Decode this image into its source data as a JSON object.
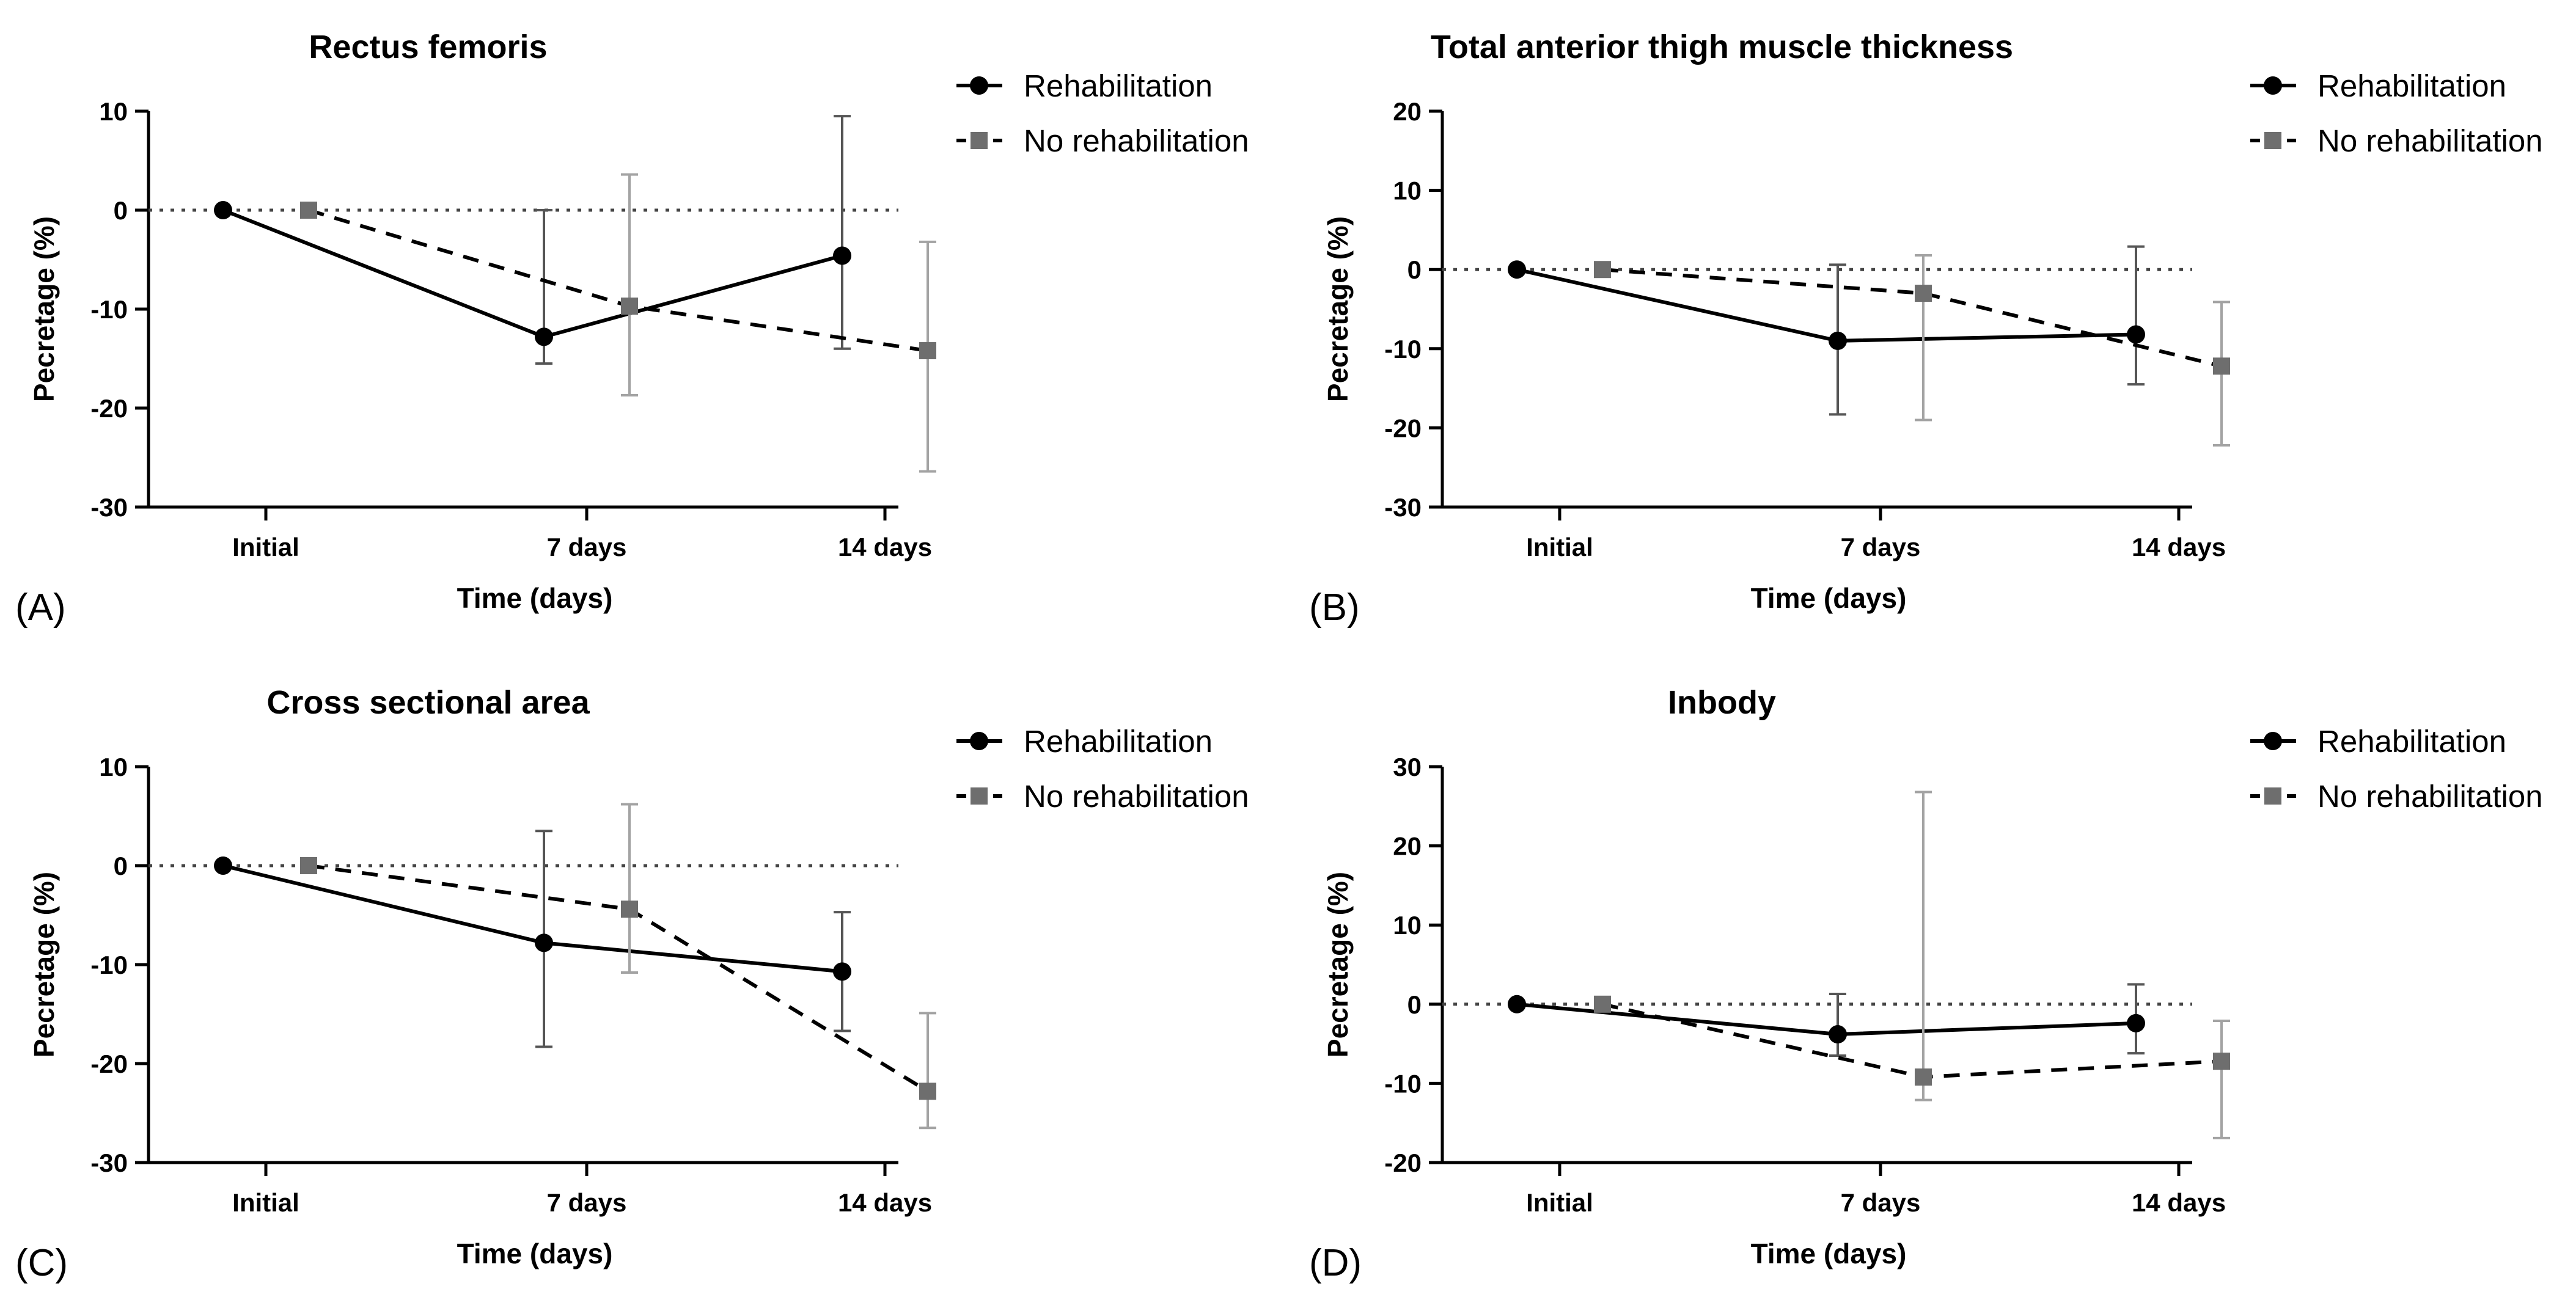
{
  "colors": {
    "rehab": "#000000",
    "no_rehab": "#6e6e6e",
    "error_bar_rehab": "#555555",
    "error_bar_no_rehab": "#a3a3a3",
    "reference": "#444444"
  },
  "legend": {
    "rehab_label": "Rehabilitation",
    "no_rehab_label": "No rehabilitation"
  },
  "chart_data": [
    {
      "panel": "(A)",
      "type": "line",
      "title": "Rectus femoris",
      "xlabel": "Time (days)",
      "ylabel": "Pecretage (%)",
      "categories": [
        "Initial",
        "7 days",
        "14 days"
      ],
      "ylim": [
        -30,
        10
      ],
      "yticks": [
        10,
        0,
        -10,
        -20,
        -30
      ],
      "reference_line": 0,
      "series": [
        {
          "name": "Rehabilitation",
          "marker": "circle",
          "style": "solid",
          "values": [
            0,
            -12.8,
            -4.6
          ],
          "err_low": [
            0,
            -15.5,
            -14.0
          ],
          "err_high": [
            0,
            0,
            9.5
          ]
        },
        {
          "name": "No rehabilitation",
          "marker": "square",
          "style": "dashed",
          "values": [
            0,
            -9.7,
            -14.2
          ],
          "err_low": [
            0,
            -18.7,
            -26.4
          ],
          "err_high": [
            0,
            3.6,
            -3.2
          ]
        }
      ]
    },
    {
      "panel": "(B)",
      "type": "line",
      "title": "Total anterior thigh muscle thickness",
      "xlabel": "Time (days)",
      "ylabel": "Pecretage (%)",
      "categories": [
        "Initial",
        "7 days",
        "14 days"
      ],
      "ylim": [
        -30,
        20
      ],
      "yticks": [
        20,
        10,
        0,
        -10,
        -20,
        -30
      ],
      "reference_line": 0,
      "series": [
        {
          "name": "Rehabilitation",
          "marker": "circle",
          "style": "solid",
          "values": [
            0,
            -9.0,
            -8.2
          ],
          "err_low": [
            0,
            -18.3,
            -14.5
          ],
          "err_high": [
            0,
            0.6,
            2.9
          ]
        },
        {
          "name": "No rehabilitation",
          "marker": "square",
          "style": "dashed",
          "values": [
            0,
            -3.0,
            -12.2
          ],
          "err_low": [
            0,
            -19.0,
            -22.2
          ],
          "err_high": [
            0,
            1.8,
            -4.1
          ]
        }
      ]
    },
    {
      "panel": "(C)",
      "type": "line",
      "title": "Cross sectional area",
      "xlabel": "Time (days)",
      "ylabel": "Pecretage (%)",
      "categories": [
        "Initial",
        "7 days",
        "14 days"
      ],
      "ylim": [
        -30,
        10
      ],
      "yticks": [
        10,
        0,
        -10,
        -20,
        -30
      ],
      "reference_line": 0,
      "series": [
        {
          "name": "Rehabilitation",
          "marker": "circle",
          "style": "solid",
          "values": [
            0,
            -7.8,
            -10.7
          ],
          "err_low": [
            0,
            -18.3,
            -16.7
          ],
          "err_high": [
            0,
            3.5,
            -4.7
          ]
        },
        {
          "name": "No rehabilitation",
          "marker": "square",
          "style": "dashed",
          "values": [
            0,
            -4.4,
            -22.8
          ],
          "err_low": [
            0,
            -10.8,
            -26.5
          ],
          "err_high": [
            0,
            6.2,
            -14.9
          ]
        }
      ]
    },
    {
      "panel": "(D)",
      "type": "line",
      "title": "Inbody",
      "xlabel": "Time (days)",
      "ylabel": "Pecretage (%)",
      "categories": [
        "Initial",
        "7 days",
        "14 days"
      ],
      "ylim": [
        -20,
        30
      ],
      "yticks": [
        30,
        20,
        10,
        0,
        -10,
        -20
      ],
      "reference_line": 0,
      "series": [
        {
          "name": "Rehabilitation",
          "marker": "circle",
          "style": "solid",
          "values": [
            0,
            -3.8,
            -2.4
          ],
          "err_low": [
            0,
            -6.5,
            -6.2
          ],
          "err_high": [
            0,
            1.3,
            2.5
          ]
        },
        {
          "name": "No rehabilitation",
          "marker": "square",
          "style": "dashed",
          "values": [
            0,
            -9.2,
            -7.2
          ],
          "err_low": [
            0,
            -12.1,
            -16.9
          ],
          "err_high": [
            0,
            26.8,
            -2.1
          ]
        }
      ]
    }
  ]
}
